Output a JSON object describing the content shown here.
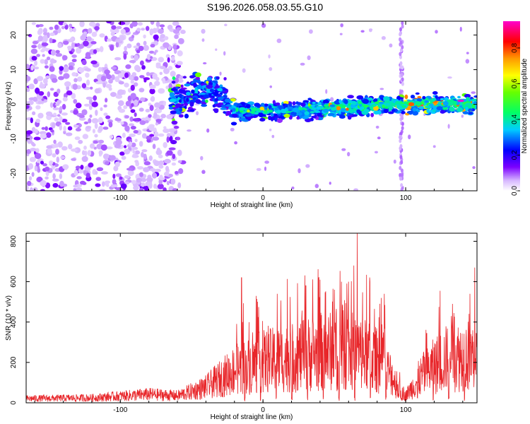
{
  "title": "S196.2026.058.03.55.G10",
  "chart_data": [
    {
      "type": "heatmap",
      "xlabel": "Height of straight line (km)",
      "ylabel": "Frequency (Hz)",
      "xlim": [
        -166,
        150
      ],
      "ylim": [
        -25,
        24
      ],
      "x_ticks": [
        -100,
        0,
        100
      ],
      "y_ticks": [
        -20,
        -10,
        0,
        10,
        20
      ],
      "colorbar": {
        "label": "Normalized spectral amplitude",
        "range": [
          0,
          0.95
        ],
        "ticks": [
          0.0,
          0.2,
          0.4,
          0.6,
          0.8
        ]
      },
      "ridge": {
        "description_points_km_hz": [
          [
            -60,
            1
          ],
          [
            -45,
            4
          ],
          [
            -30,
            3
          ],
          [
            -20,
            -2
          ],
          [
            0,
            -2
          ],
          [
            50,
            -1
          ],
          [
            100,
            0
          ],
          [
            150,
            0
          ]
        ]
      },
      "grid": false
    },
    {
      "type": "line",
      "xlabel": "Height of straight line (km)",
      "ylabel": "SNR (10 * v/v)",
      "xlim": [
        -166,
        150
      ],
      "ylim": [
        0,
        840
      ],
      "x_ticks": [
        -100,
        0,
        100
      ],
      "y_ticks": [
        0,
        200,
        400,
        600,
        800
      ],
      "series_color": "#e8262a",
      "envelope_km_snr": [
        [
          -166,
          30
        ],
        [
          -120,
          35
        ],
        [
          -80,
          60
        ],
        [
          -60,
          50
        ],
        [
          -50,
          80
        ],
        [
          -40,
          110
        ],
        [
          -30,
          170
        ],
        [
          -20,
          230
        ],
        [
          -10,
          260
        ],
        [
          0,
          290
        ],
        [
          20,
          320
        ],
        [
          40,
          360
        ],
        [
          60,
          370
        ],
        [
          70,
          340
        ],
        [
          80,
          300
        ],
        [
          90,
          200
        ],
        [
          95,
          90
        ],
        [
          100,
          50
        ],
        [
          110,
          180
        ],
        [
          120,
          260
        ],
        [
          130,
          320
        ],
        [
          150,
          340
        ]
      ],
      "peaks_km_snr": [
        [
          -15,
          620
        ],
        [
          10,
          540
        ],
        [
          30,
          580
        ],
        [
          40,
          610
        ],
        [
          50,
          560
        ],
        [
          55,
          600
        ],
        [
          60,
          600
        ],
        [
          66,
          840
        ],
        [
          75,
          600
        ],
        [
          85,
          540
        ],
        [
          130,
          470
        ],
        [
          145,
          540
        ]
      ],
      "grid": false
    }
  ]
}
